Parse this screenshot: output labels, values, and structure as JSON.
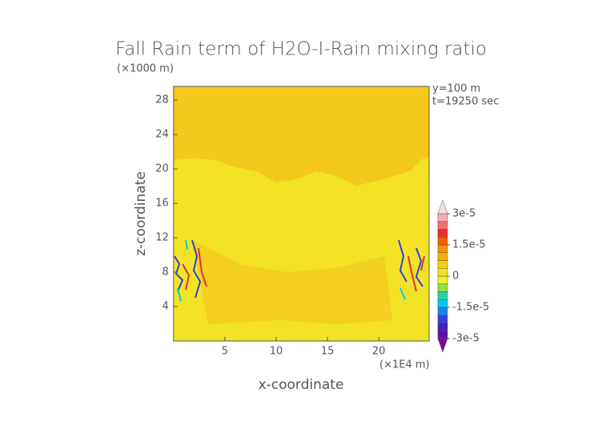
{
  "chart_data": {
    "type": "shaded",
    "title": "Fall Rain term of H2O-I-Rain mixing ratio",
    "y_unit_label": "(×1000 m)",
    "x_unit_label": "(×1E4 m)",
    "info_lines": [
      "y=100 m",
      "t=19250 sec"
    ],
    "xlabel": "x-coordinate",
    "ylabel": "z-coordinate",
    "xlim": [
      0,
      24.9
    ],
    "xticks": [
      5,
      10,
      15,
      20
    ],
    "ylim": [
      0,
      29.6
    ],
    "yticks": [
      4,
      8,
      12,
      16,
      20,
      24,
      28
    ],
    "clim": [
      -3e-05,
      3e-05
    ],
    "cticks": [
      {
        "value": 3e-05,
        "label": "3e-5"
      },
      {
        "value": 1.5e-05,
        "label": "1.5e-5"
      },
      0,
      {
        "value": -1.5e-05,
        "label": "-1.5e-5"
      },
      {
        "value": -3e-05,
        "label": "-3e-5"
      }
    ],
    "colors": [
      "#6010a0",
      "#4820c0",
      "#3040e0",
      "#2080f0",
      "#00c8f0",
      "#30d0a0",
      "#90e040",
      "#f0f028",
      "#f4e020",
      "#f8d000",
      "#f8b000",
      "#f89000",
      "#f06000",
      "#e83030",
      "#f07070",
      "#f4b0b0"
    ],
    "over_color": "#f8e0e0",
    "under_color": "#8000a0"
  }
}
